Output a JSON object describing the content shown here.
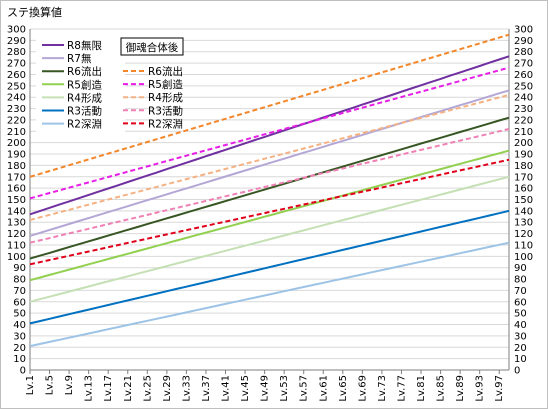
{
  "chart_data": {
    "type": "line",
    "title": "ステ換算値",
    "xlabel": "",
    "ylabel": "",
    "ylim": [
      0,
      300
    ],
    "ystep": 10,
    "x_start": 1,
    "x_end": 99,
    "x_tick_labels": [
      "Lv.1",
      "Lv.5",
      "Lv.9",
      "Lv.13",
      "Lv.17",
      "Lv.21",
      "Lv.25",
      "Lv.29",
      "Lv.33",
      "Lv.37",
      "Lv.41",
      "Lv.45",
      "Lv.49",
      "Lv.53",
      "Lv.57",
      "Lv.61",
      "Lv.65",
      "Lv.69",
      "Lv.73",
      "Lv.77",
      "Lv.81",
      "Lv.85",
      "Lv.89",
      "Lv.93",
      "Lv.97"
    ],
    "grid": true,
    "legend_placement": "top-left",
    "legend_group_header": "御魂合体後",
    "series": [
      {
        "name": "R8無限",
        "color": "#7030a0",
        "dash": "solid",
        "width": 2,
        "start": 137,
        "end": 276
      },
      {
        "name": "R7無",
        "color": "#b4a7d6",
        "dash": "solid",
        "width": 2,
        "start": 118,
        "end": 246
      },
      {
        "name": "R6流出",
        "color": "#375623",
        "dash": "solid",
        "width": 2,
        "start": 98,
        "end": 222
      },
      {
        "name": "R5創造",
        "color": "#92d050",
        "dash": "solid",
        "width": 2,
        "start": 79,
        "end": 193
      },
      {
        "name": "R4形成",
        "color": "#c5e0b4",
        "dash": "solid",
        "width": 2,
        "start": 60,
        "end": 170
      },
      {
        "name": "R3活動",
        "color": "#0070c0",
        "dash": "solid",
        "width": 2,
        "start": 41,
        "end": 140
      },
      {
        "name": "R2深淵",
        "color": "#9dc3e6",
        "dash": "solid",
        "width": 2,
        "start": 21,
        "end": 112
      },
      {
        "name": "R6流出",
        "color": "#f4862a",
        "dash": "dashed",
        "width": 2,
        "start": 170,
        "end": 295
      },
      {
        "name": "R5創造",
        "color": "#e61ee6",
        "dash": "dashed",
        "width": 2,
        "start": 151,
        "end": 266
      },
      {
        "name": "R4形成",
        "color": "#f4b183",
        "dash": "dashed",
        "width": 2,
        "start": 132,
        "end": 242
      },
      {
        "name": "R3活動",
        "color": "#f080b4",
        "dash": "dashed",
        "width": 2,
        "start": 112,
        "end": 212
      },
      {
        "name": "R2深淵",
        "color": "#e0001a",
        "dash": "dashed",
        "width": 2,
        "start": 93,
        "end": 185
      }
    ]
  }
}
